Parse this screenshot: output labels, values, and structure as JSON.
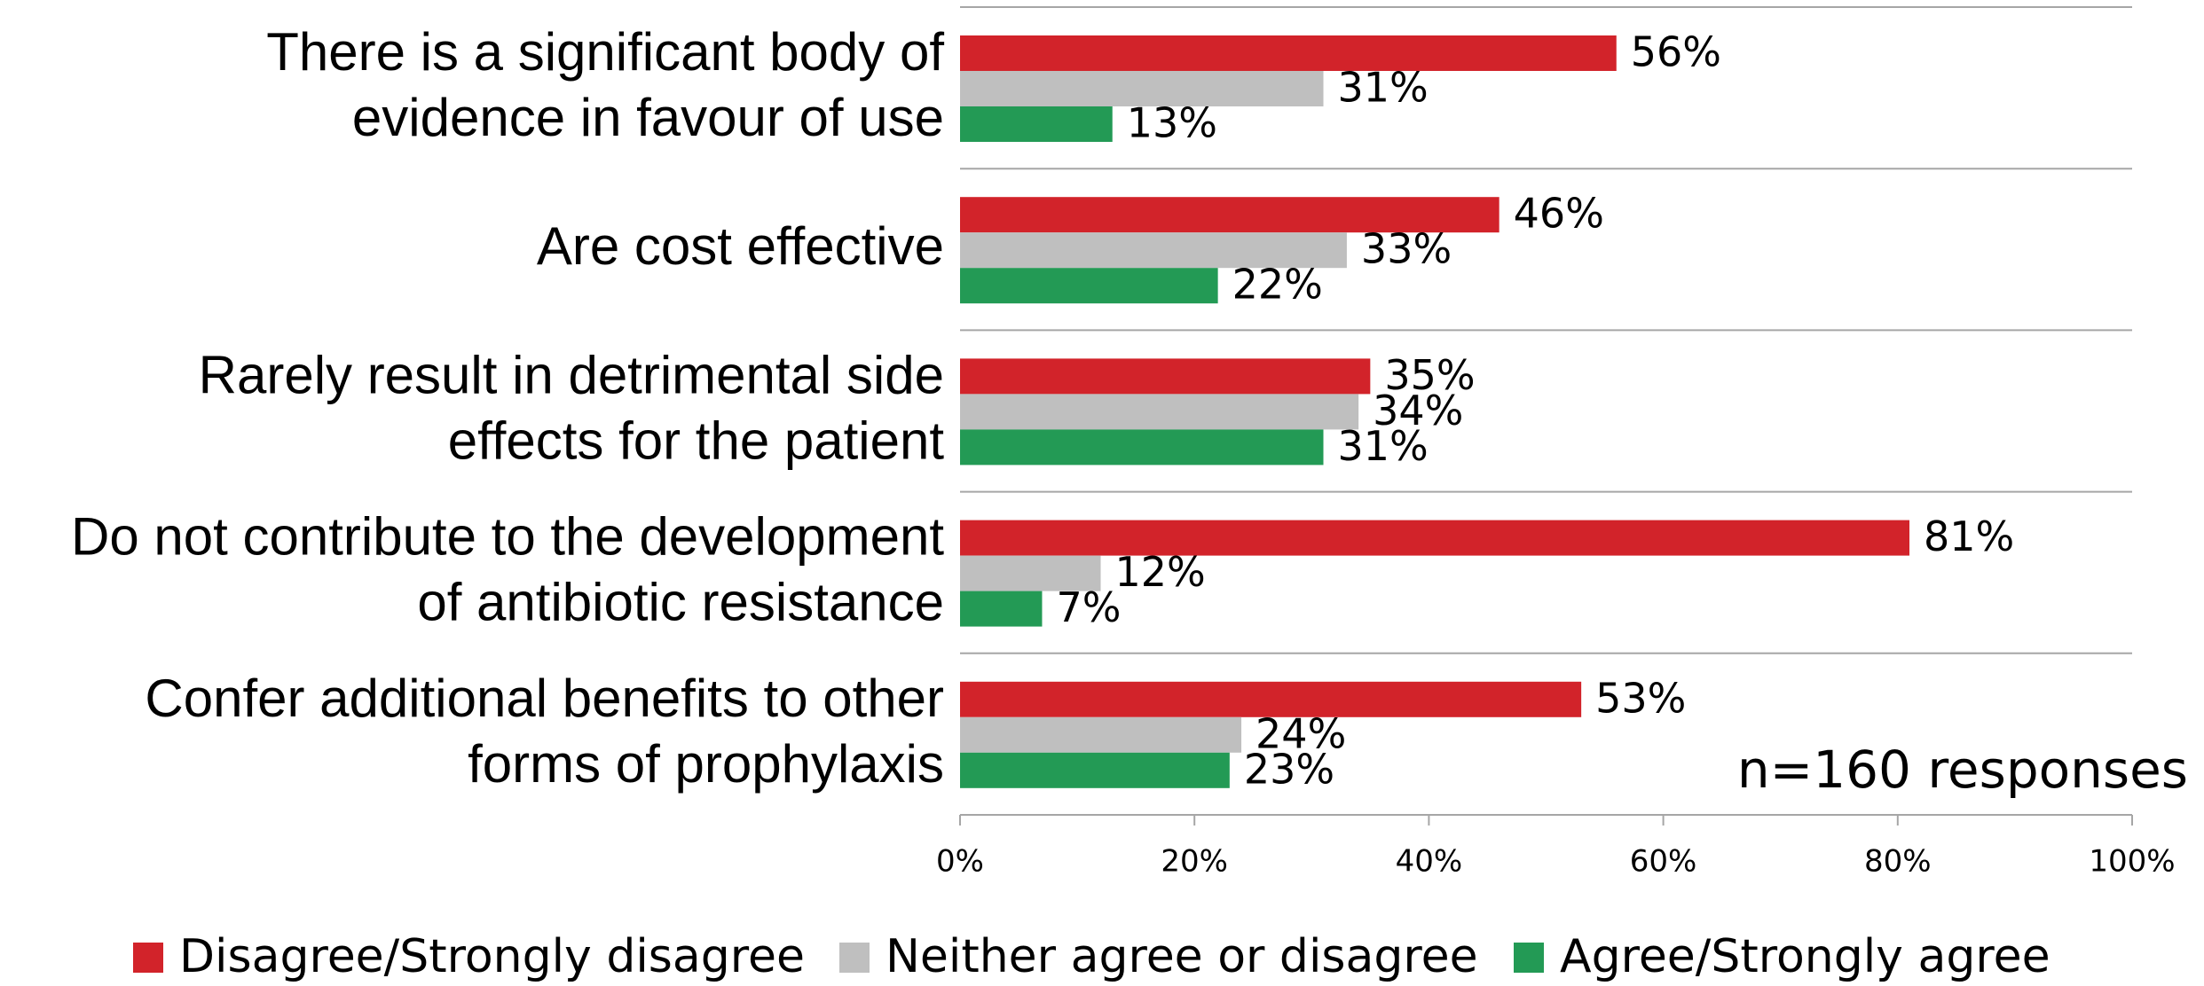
{
  "chart_data": {
    "type": "bar",
    "orientation": "horizontal",
    "categories": [
      "There is a significant body of\nevidence in favour of use",
      "Are cost effective",
      "Rarely result in detrimental side\neffects for the patient",
      "Do not contribute to the development\nof antibiotic resistance",
      "Confer additional benefits to other\nforms of prophylaxis"
    ],
    "series": [
      {
        "name": "Disagree/Strongly disagree",
        "color": "#d2232a",
        "values": [
          56,
          46,
          35,
          81,
          53
        ],
        "value_labels": [
          "56%",
          "46%",
          "35%",
          "81%",
          "53%"
        ]
      },
      {
        "name": "Neither agree or disagree",
        "color": "#bfbfbf",
        "values": [
          31,
          33,
          34,
          12,
          24
        ],
        "value_labels": [
          "31%",
          "33%",
          "34%",
          "12%",
          "24%"
        ]
      },
      {
        "name": "Agree/Strongly agree",
        "color": "#239a55",
        "values": [
          13,
          22,
          31,
          7,
          23
        ],
        "value_labels": [
          "13%",
          "22%",
          "31%",
          "7%",
          "23%"
        ]
      }
    ],
    "xlim": [
      0,
      100
    ],
    "xticks": [
      {
        "value": 0,
        "label": "0%"
      },
      {
        "value": 20,
        "label": "20%"
      },
      {
        "value": 40,
        "label": "40%"
      },
      {
        "value": 60,
        "label": "60%"
      },
      {
        "value": 80,
        "label": "80%"
      },
      {
        "value": 100,
        "label": "100%"
      }
    ],
    "annotation": "n=160  responses",
    "legend": "bottom"
  }
}
